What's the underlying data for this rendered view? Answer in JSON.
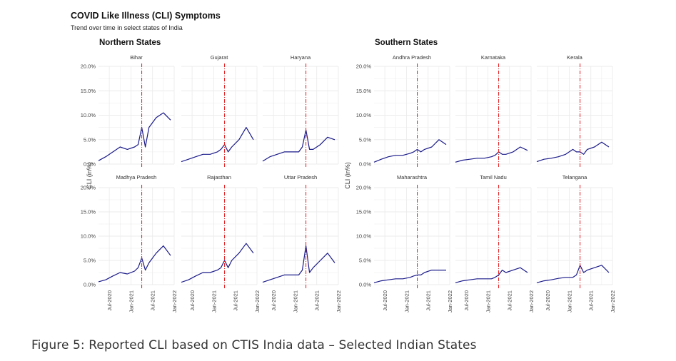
{
  "figure": {
    "title": "COVID Like Illness (CLI) Symptoms",
    "subtitle": "Trend over time in select states of India",
    "caption": "Figure 5: Reported CLI based on CTIS India data – Selected Indian States"
  },
  "colors": {
    "line": "#1a1a8a",
    "reference_line": "#e41a1c",
    "grid": "#ebebeb"
  },
  "chart_data": [
    {
      "type": "line",
      "group": "Northern States",
      "ylabel": "CLI (in%)",
      "ylim": [
        0,
        20
      ],
      "yticks": [
        "0.0%",
        "5.0%",
        "10.0%",
        "15.0%",
        "20.0%"
      ],
      "xlim": [
        "2020-04",
        "2022-01"
      ],
      "xticks": [
        "Jul-2020",
        "Jan-2021",
        "Jul-2021",
        "Jan-2022"
      ],
      "reference_line_x": "2021-04",
      "grid": true,
      "panels": [
        {
          "name": "Bihar",
          "x": [
            "2020-04",
            "2020-06",
            "2020-08",
            "2020-10",
            "2020-12",
            "2021-02",
            "2021-03",
            "2021-04",
            "2021-05",
            "2021-06",
            "2021-08",
            "2021-10",
            "2021-12"
          ],
          "values": [
            0.7,
            1.5,
            2.5,
            3.5,
            3.0,
            3.5,
            4.0,
            7.5,
            3.5,
            7.5,
            9.5,
            10.5,
            9.0
          ]
        },
        {
          "name": "Gujarat",
          "x": [
            "2020-04",
            "2020-06",
            "2020-08",
            "2020-10",
            "2020-12",
            "2021-02",
            "2021-03",
            "2021-04",
            "2021-05",
            "2021-06",
            "2021-08",
            "2021-10",
            "2021-12"
          ],
          "values": [
            0.5,
            1.0,
            1.5,
            2.0,
            2.0,
            2.5,
            3.0,
            4.0,
            2.5,
            3.5,
            5.0,
            7.5,
            5.0
          ]
        },
        {
          "name": "Haryana",
          "x": [
            "2020-04",
            "2020-06",
            "2020-08",
            "2020-10",
            "2020-12",
            "2021-02",
            "2021-03",
            "2021-04",
            "2021-05",
            "2021-06",
            "2021-08",
            "2021-10",
            "2021-12"
          ],
          "values": [
            0.6,
            1.5,
            2.0,
            2.5,
            2.5,
            2.5,
            3.5,
            7.0,
            3.0,
            3.0,
            4.0,
            5.5,
            5.0
          ]
        },
        {
          "name": "Madhya Pradesh",
          "x": [
            "2020-04",
            "2020-06",
            "2020-08",
            "2020-10",
            "2020-12",
            "2021-02",
            "2021-03",
            "2021-04",
            "2021-05",
            "2021-06",
            "2021-08",
            "2021-10",
            "2021-12"
          ],
          "values": [
            0.6,
            1.0,
            1.8,
            2.5,
            2.2,
            2.8,
            3.5,
            5.5,
            3.0,
            4.5,
            6.5,
            8.0,
            6.0
          ]
        },
        {
          "name": "Rajasthan",
          "x": [
            "2020-04",
            "2020-06",
            "2020-08",
            "2020-10",
            "2020-12",
            "2021-02",
            "2021-03",
            "2021-04",
            "2021-05",
            "2021-06",
            "2021-08",
            "2021-10",
            "2021-12"
          ],
          "values": [
            0.5,
            1.0,
            1.8,
            2.5,
            2.5,
            3.0,
            3.5,
            5.0,
            3.5,
            5.0,
            6.5,
            8.5,
            6.5
          ]
        },
        {
          "name": "Uttar Pradesh",
          "x": [
            "2020-04",
            "2020-06",
            "2020-08",
            "2020-10",
            "2020-12",
            "2021-02",
            "2021-03",
            "2021-04",
            "2021-05",
            "2021-06",
            "2021-08",
            "2021-10",
            "2021-12"
          ],
          "values": [
            0.5,
            1.0,
            1.5,
            2.0,
            2.0,
            2.0,
            3.0,
            8.0,
            2.5,
            3.5,
            5.0,
            6.5,
            4.5
          ]
        }
      ]
    },
    {
      "type": "line",
      "group": "Southern States",
      "ylabel": "CLI (in%)",
      "ylim": [
        0,
        20
      ],
      "yticks": [
        "0.0%",
        "5.0%",
        "10.0%",
        "15.0%",
        "20.0%"
      ],
      "xlim": [
        "2020-04",
        "2022-01"
      ],
      "xticks": [
        "Jul-2020",
        "Jan-2021",
        "Jul-2021",
        "Jan-2022"
      ],
      "reference_line_x": "2021-04",
      "grid": true,
      "panels": [
        {
          "name": "Andhra Pradesh",
          "x": [
            "2020-04",
            "2020-06",
            "2020-08",
            "2020-10",
            "2020-12",
            "2021-02",
            "2021-03",
            "2021-04",
            "2021-05",
            "2021-06",
            "2021-08",
            "2021-10",
            "2021-12"
          ],
          "values": [
            0.4,
            1.0,
            1.5,
            1.8,
            1.8,
            2.2,
            2.5,
            3.0,
            2.5,
            3.0,
            3.5,
            5.0,
            4.0
          ]
        },
        {
          "name": "Karnataka",
          "x": [
            "2020-04",
            "2020-06",
            "2020-08",
            "2020-10",
            "2020-12",
            "2021-02",
            "2021-03",
            "2021-04",
            "2021-05",
            "2021-06",
            "2021-08",
            "2021-10",
            "2021-12"
          ],
          "values": [
            0.4,
            0.8,
            1.0,
            1.2,
            1.2,
            1.5,
            1.8,
            2.5,
            2.0,
            2.0,
            2.5,
            3.5,
            2.8
          ]
        },
        {
          "name": "Kerala",
          "x": [
            "2020-04",
            "2020-06",
            "2020-08",
            "2020-10",
            "2020-12",
            "2021-02",
            "2021-03",
            "2021-04",
            "2021-05",
            "2021-06",
            "2021-08",
            "2021-10",
            "2021-12"
          ],
          "values": [
            0.5,
            1.0,
            1.2,
            1.5,
            2.0,
            3.0,
            2.5,
            2.5,
            2.0,
            3.0,
            3.5,
            4.5,
            3.5
          ]
        },
        {
          "name": "Maharashtra",
          "x": [
            "2020-04",
            "2020-06",
            "2020-08",
            "2020-10",
            "2020-12",
            "2021-02",
            "2021-03",
            "2021-04",
            "2021-05",
            "2021-06",
            "2021-08",
            "2021-10",
            "2021-12"
          ],
          "values": [
            0.4,
            0.8,
            1.0,
            1.2,
            1.2,
            1.5,
            1.8,
            2.0,
            2.0,
            2.5,
            3.0,
            3.0,
            3.0
          ]
        },
        {
          "name": "Tamil Nadu",
          "x": [
            "2020-04",
            "2020-06",
            "2020-08",
            "2020-10",
            "2020-12",
            "2021-02",
            "2021-03",
            "2021-04",
            "2021-05",
            "2021-06",
            "2021-08",
            "2021-10",
            "2021-12"
          ],
          "values": [
            0.4,
            0.8,
            1.0,
            1.2,
            1.2,
            1.2,
            1.5,
            2.0,
            3.0,
            2.5,
            3.0,
            3.5,
            2.5
          ]
        },
        {
          "name": "Telangana",
          "x": [
            "2020-04",
            "2020-06",
            "2020-08",
            "2020-10",
            "2020-12",
            "2021-02",
            "2021-03",
            "2021-04",
            "2021-05",
            "2021-06",
            "2021-08",
            "2021-10",
            "2021-12"
          ],
          "values": [
            0.4,
            0.8,
            1.0,
            1.3,
            1.5,
            1.5,
            2.0,
            4.0,
            2.5,
            3.0,
            3.5,
            4.0,
            2.5
          ]
        }
      ]
    }
  ]
}
